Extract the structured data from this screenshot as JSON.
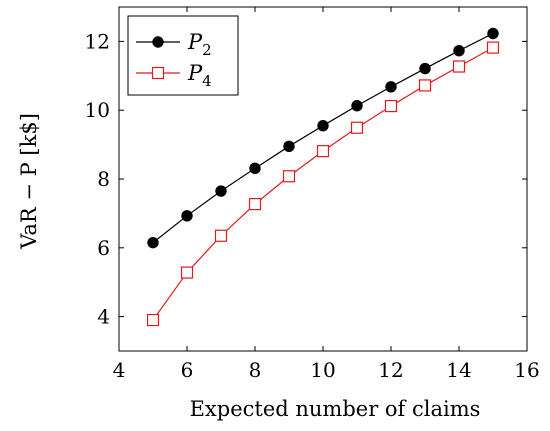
{
  "chart_data": {
    "type": "line",
    "xlabel": "Expected number of claims",
    "ylabel": "VaR − P   [k$]",
    "xlim": [
      4,
      16
    ],
    "ylim": [
      3,
      13
    ],
    "xticks": [
      4,
      6,
      8,
      10,
      12,
      14,
      16
    ],
    "yticks": [
      4,
      6,
      8,
      10,
      12
    ],
    "xtick_labels": [
      "4",
      "6",
      "8",
      "10",
      "12",
      "14",
      "16"
    ],
    "ytick_labels": [
      "4",
      "6",
      "8",
      "10",
      "12"
    ],
    "grid": false,
    "legend_position": "top-left",
    "series": [
      {
        "name": "P2",
        "name_base": "P",
        "name_sub": "2",
        "color": "#000000",
        "marker": "filled-circle",
        "x": [
          5,
          6,
          7,
          8,
          9,
          10,
          11,
          12,
          13,
          14,
          15
        ],
        "y": [
          6.15,
          6.93,
          7.65,
          8.31,
          8.95,
          9.55,
          10.13,
          10.68,
          11.21,
          11.73,
          12.23
        ]
      },
      {
        "name": "P4",
        "name_base": "P",
        "name_sub": "4",
        "color": "#e31a1c",
        "marker": "open-square",
        "x": [
          5,
          6,
          7,
          8,
          9,
          10,
          11,
          12,
          13,
          14,
          15
        ],
        "y": [
          3.9,
          5.28,
          6.35,
          7.27,
          8.08,
          8.81,
          9.49,
          10.12,
          10.72,
          11.27,
          11.82
        ]
      }
    ]
  }
}
